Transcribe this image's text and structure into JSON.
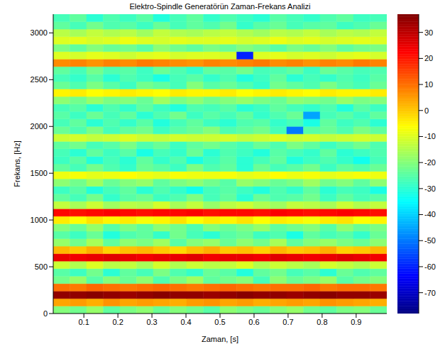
{
  "chart_data": {
    "type": "heatmap",
    "title": "Elektro-Spindle Generatörün Zaman-Frekans Analizi",
    "x_label": "Zaman, [s]",
    "y_label": "Frekans, [Hz]",
    "xlim": [
      0.01,
      0.99
    ],
    "xticks": [
      0.1,
      0.2,
      0.3,
      0.4,
      0.5,
      0.6,
      0.7,
      0.8,
      0.9
    ],
    "ylim": [
      0,
      3200
    ],
    "yticks": [
      0,
      500,
      1000,
      1500,
      2000,
      2500,
      3000
    ],
    "x_bins": [
      0.01,
      0.059,
      0.108,
      0.157,
      0.206,
      0.255,
      0.304,
      0.353,
      0.402,
      0.451,
      0.5,
      0.549,
      0.598,
      0.647,
      0.696,
      0.745,
      0.794,
      0.843,
      0.892,
      0.941,
      0.99
    ],
    "y_bins": [
      0,
      80,
      160,
      240,
      320,
      400,
      480,
      560,
      640,
      720,
      800,
      880,
      960,
      1040,
      1120,
      1200,
      1280,
      1360,
      1440,
      1520,
      1600,
      1680,
      1760,
      1840,
      1920,
      2000,
      2080,
      2160,
      2240,
      2320,
      2400,
      2480,
      2560,
      2640,
      2720,
      2800,
      2880,
      2960,
      3040,
      3120,
      3200
    ],
    "cells": [
      [
        -20,
        -22,
        -18,
        -24,
        -21,
        -19,
        -23,
        -20,
        -22,
        -25,
        -19,
        -21,
        -23,
        -20,
        -18,
        -22,
        -24,
        -21,
        -20,
        -23
      ],
      [
        4,
        5,
        3,
        6,
        4,
        5,
        4,
        3,
        5,
        6,
        4,
        5,
        3,
        4,
        5,
        4,
        6,
        5,
        4,
        3
      ],
      [
        35,
        35,
        36,
        35,
        34,
        35,
        36,
        35,
        35,
        34,
        35,
        36,
        35,
        35,
        34,
        35,
        36,
        35,
        35,
        34
      ],
      [
        10,
        9,
        11,
        10,
        9,
        10,
        11,
        10,
        9,
        10,
        11,
        10,
        9,
        10,
        10,
        11,
        9,
        10,
        10,
        9
      ],
      [
        -22,
        -18,
        -25,
        -20,
        -23,
        -19,
        -26,
        -21,
        -17,
        -24,
        -22,
        -20,
        -27,
        -19,
        -23,
        -21,
        -18,
        -25,
        -22,
        -20
      ],
      [
        -25,
        -28,
        -22,
        -30,
        -24,
        -27,
        -21,
        -26,
        -29,
        -23,
        -25,
        -31,
        -24,
        -22,
        -27,
        -25,
        -30,
        -23,
        -26,
        -24
      ],
      [
        -12,
        -15,
        -10,
        -14,
        -13,
        -16,
        -11,
        -15,
        -12,
        -14,
        -13,
        -10,
        -15,
        -12,
        -14,
        -16,
        -11,
        -13,
        -15,
        -12
      ],
      [
        25,
        24,
        25,
        26,
        25,
        24,
        25,
        25,
        26,
        24,
        25,
        25,
        24,
        26,
        25,
        24,
        25,
        26,
        25,
        24
      ],
      [
        2,
        0,
        3,
        -1,
        1,
        2,
        0,
        -2,
        1,
        3,
        0,
        1,
        -1,
        2,
        0,
        1,
        3,
        -1,
        0,
        2
      ],
      [
        -18,
        -22,
        -16,
        -24,
        -19,
        -21,
        -17,
        -25,
        -20,
        -18,
        -23,
        -19,
        -22,
        -16,
        -24,
        -20,
        -18,
        -21,
        -23,
        -19
      ],
      [
        -25,
        -28,
        -23,
        -31,
        -26,
        -24,
        -29,
        -22,
        -27,
        -30,
        -25,
        -23,
        -28,
        -26,
        -32,
        -24,
        -27,
        -25,
        -29,
        -23
      ],
      [
        -20,
        -23,
        -18,
        -25,
        -21,
        -24,
        -19,
        -22,
        -26,
        -20,
        -23,
        -21,
        -18,
        -24,
        -22,
        -20,
        -25,
        -19,
        -23,
        -21
      ],
      [
        -4,
        -6,
        -3,
        -5,
        -4,
        -7,
        -5,
        -3,
        -6,
        -4,
        -5,
        -3,
        -6,
        -4,
        -5,
        -7,
        -4,
        -3,
        -6,
        -5
      ],
      [
        22,
        21,
        22,
        23,
        22,
        21,
        22,
        22,
        23,
        21,
        22,
        22,
        21,
        23,
        22,
        21,
        22,
        23,
        22,
        21
      ],
      [
        -13,
        -16,
        -12,
        -17,
        -14,
        -15,
        -11,
        -16,
        -13,
        -18,
        -14,
        -12,
        -15,
        -17,
        -13,
        -14,
        -16,
        -12,
        -15,
        -13
      ],
      [
        -24,
        -27,
        -22,
        -29,
        -25,
        -23,
        -28,
        -26,
        -21,
        -27,
        -24,
        -30,
        -23,
        -26,
        -25,
        -22,
        -28,
        -24,
        -27,
        -25
      ],
      [
        -28,
        -25,
        -31,
        -27,
        -24,
        -30,
        -26,
        -29,
        -33,
        -27,
        -25,
        -28,
        -31,
        -26,
        -29,
        -24,
        -30,
        -27,
        -28,
        -32
      ],
      [
        -19,
        -22,
        -17,
        -23,
        -20,
        -18,
        -24,
        -21,
        -19,
        -22,
        -25,
        -18,
        -20,
        -23,
        -21,
        -17,
        -22,
        -20,
        -24,
        -19
      ],
      [
        -8,
        -7,
        -9,
        -8,
        -6,
        -8,
        -9,
        -7,
        -8,
        -8,
        -7,
        -9,
        -8,
        -6,
        -8,
        -7,
        -9,
        -8,
        -7,
        -8
      ],
      [
        -24,
        -27,
        -22,
        -26,
        -29,
        -23,
        -25,
        -28,
        -21,
        -26,
        -24,
        -30,
        -23,
        -27,
        -25,
        -22,
        -28,
        -24,
        -26,
        -23
      ],
      [
        -28,
        -25,
        -31,
        -27,
        -30,
        -24,
        -29,
        -26,
        -32,
        -28,
        -25,
        -30,
        -27,
        -24,
        -31,
        -28,
        -26,
        -29,
        -33,
        -27
      ],
      [
        -27,
        -30,
        -24,
        -28,
        -25,
        -32,
        -27,
        -29,
        -23,
        -30,
        -26,
        -28,
        -31,
        -25,
        -27,
        -29,
        -24,
        -30,
        -28,
        -26
      ],
      [
        -24,
        -22,
        -27,
        -25,
        -21,
        -26,
        -23,
        -28,
        -24,
        -22,
        -25,
        -27,
        -23,
        -26,
        -21,
        -24,
        -28,
        -25,
        -22,
        -26
      ],
      [
        -12,
        -11,
        -13,
        -12,
        -10,
        -12,
        -13,
        -11,
        -12,
        -12,
        -11,
        -13,
        -12,
        -10,
        -12,
        -11,
        -13,
        -12,
        -11,
        -12
      ],
      [
        -23,
        -26,
        -21,
        -27,
        -24,
        -22,
        -28,
        -25,
        -23,
        -20,
        -26,
        -24,
        -22,
        -27,
        -50,
        -25,
        -23,
        -26,
        -21,
        -24
      ],
      [
        -27,
        -24,
        -30,
        -26,
        -29,
        -25,
        -31,
        -27,
        -24,
        -28,
        -30,
        -26,
        -25,
        -29,
        -27,
        -32,
        -24,
        -28,
        -26,
        -30
      ],
      [
        -25,
        -28,
        -23,
        -27,
        -24,
        -30,
        -26,
        -22,
        -28,
        -25,
        -27,
        -24,
        -29,
        -26,
        -23,
        -45,
        -27,
        -25,
        -28,
        -24
      ],
      [
        -27,
        -25,
        -30,
        -26,
        -29,
        -24,
        -28,
        -31,
        -26,
        -27,
        -25,
        -30,
        -28,
        -24,
        -27,
        -29,
        -26,
        -31,
        -25,
        -28
      ],
      [
        -19,
        -22,
        -18,
        -21,
        -20,
        -23,
        -17,
        -21,
        -19,
        -22,
        -20,
        -18,
        -21,
        -23,
        -19,
        -20,
        -22,
        -18,
        -21,
        -20
      ],
      [
        -5,
        -4,
        -6,
        -5,
        -4,
        -5,
        -6,
        -4,
        -5,
        -5,
        -4,
        -6,
        -5,
        -4,
        -5,
        -6,
        -4,
        -5,
        -5,
        -4
      ],
      [
        -23,
        -26,
        -21,
        -25,
        -28,
        -22,
        -24,
        -27,
        -20,
        -25,
        -23,
        -26,
        -29,
        -22,
        -24,
        -26,
        -21,
        -25,
        -27,
        -23
      ],
      [
        -27,
        -29,
        -25,
        -30,
        -26,
        -28,
        -32,
        -27,
        -25,
        -29,
        -26,
        -31,
        -28,
        -24,
        -30,
        -27,
        -29,
        -26,
        -28,
        -25
      ],
      [
        -24,
        -27,
        -22,
        -26,
        -25,
        -28,
        -23,
        -26,
        -29,
        -24,
        -25,
        -22,
        -27,
        -26,
        -24,
        -28,
        -23,
        -25,
        -27,
        -26
      ],
      [
        7,
        8,
        6,
        8,
        7,
        9,
        8,
        7,
        6,
        8,
        7,
        8,
        9,
        7,
        8,
        6,
        8,
        7,
        9,
        8
      ],
      [
        -10,
        -11,
        -9,
        -10,
        -12,
        -10,
        -9,
        -11,
        -10,
        -10,
        -11,
        -60,
        -10,
        -9,
        -11,
        -10,
        -12,
        -10,
        -9,
        -11
      ],
      [
        -21,
        -24,
        -20,
        -23,
        -22,
        -25,
        -19,
        -22,
        -24,
        -21,
        -23,
        -20,
        -22,
        -25,
        -21,
        -23,
        -20,
        -24,
        -22,
        -21
      ],
      [
        -10,
        -9,
        -11,
        -10,
        -8,
        -10,
        -11,
        -9,
        -10,
        -10,
        -9,
        -11,
        -10,
        -8,
        -10,
        -9,
        -11,
        -10,
        -9,
        -10
      ],
      [
        -14,
        -16,
        -13,
        -15,
        -14,
        -17,
        -13,
        -15,
        -16,
        -14,
        -13,
        -15,
        -17,
        -14,
        -15,
        -13,
        -16,
        -14,
        -15,
        -13
      ],
      [
        -24,
        -27,
        -22,
        -26,
        -25,
        -28,
        -23,
        -27,
        -24,
        -26,
        -22,
        -29,
        -25,
        -23,
        -27,
        -25,
        -24,
        -28,
        -26,
        -23
      ],
      [
        -27,
        -24,
        -30,
        -26,
        -28,
        -25,
        -31,
        -27,
        -24,
        -29,
        -26,
        -28,
        -30,
        -25,
        -27,
        -29,
        -26,
        -24,
        -28,
        -27
      ]
    ],
    "colorbar": {
      "range": [
        -78,
        37
      ],
      "ticks": [
        -70,
        -60,
        -50,
        -40,
        -30,
        -20,
        -10,
        0,
        10,
        20,
        30
      ]
    }
  }
}
